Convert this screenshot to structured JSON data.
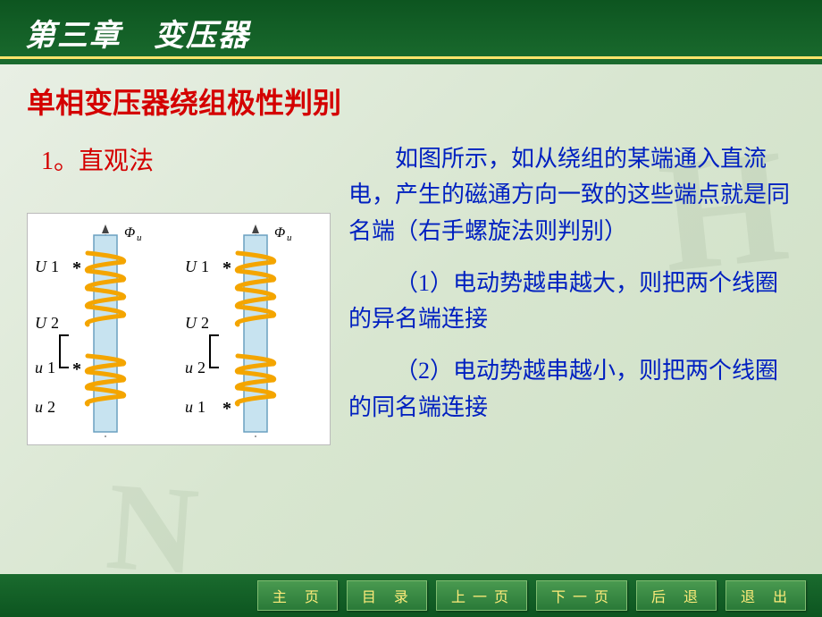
{
  "header": {
    "chapter_title": "第三章　变压器"
  },
  "slide": {
    "title": "单相变压器绕组极性判别",
    "method_label": "1。直观法"
  },
  "body": {
    "p1": "如图所示，如从绕组的某端通入直流电，产生的磁通方向一致的这些端点就是同名端（右手螺旋法则判别）",
    "p2": "（1）电动势越串越大，则把两个线圈的异名端连接",
    "p3": "（2）电动势越串越小，则把两个线圈的同名端连接"
  },
  "diagram": {
    "flux_symbol": "Φ",
    "flux_sub": "u",
    "left": {
      "labels": [
        "U1",
        "U2",
        "u1",
        "u2"
      ],
      "stars": [
        true,
        false,
        true,
        false
      ]
    },
    "right": {
      "labels": [
        "U1",
        "U2",
        "u2",
        "u1"
      ],
      "stars": [
        true,
        false,
        false,
        true
      ]
    },
    "core_fill": "#c7e3f0",
    "core_stroke": "#6aa0c0",
    "coil_color": "#f4a500",
    "label_color": "#000000",
    "star_color": "#000000",
    "dash_color": "#444444",
    "background": "#ffffff",
    "font_size_label": 18,
    "font_size_phi": 16
  },
  "nav": {
    "home": "主 页",
    "toc": "目 录",
    "prev": "上一页",
    "next": "下一页",
    "back": "后 退",
    "exit": "退 出"
  },
  "colors": {
    "title_red": "#d40000",
    "body_blue": "#0020c0",
    "frame_green_dark": "#0d5520",
    "frame_green": "#1a6b2e",
    "accent_yellow": "#ffe46b",
    "btn_text": "#ffec7a",
    "content_bg_a": "#e8efe4",
    "content_bg_b": "#cfe0c6"
  }
}
